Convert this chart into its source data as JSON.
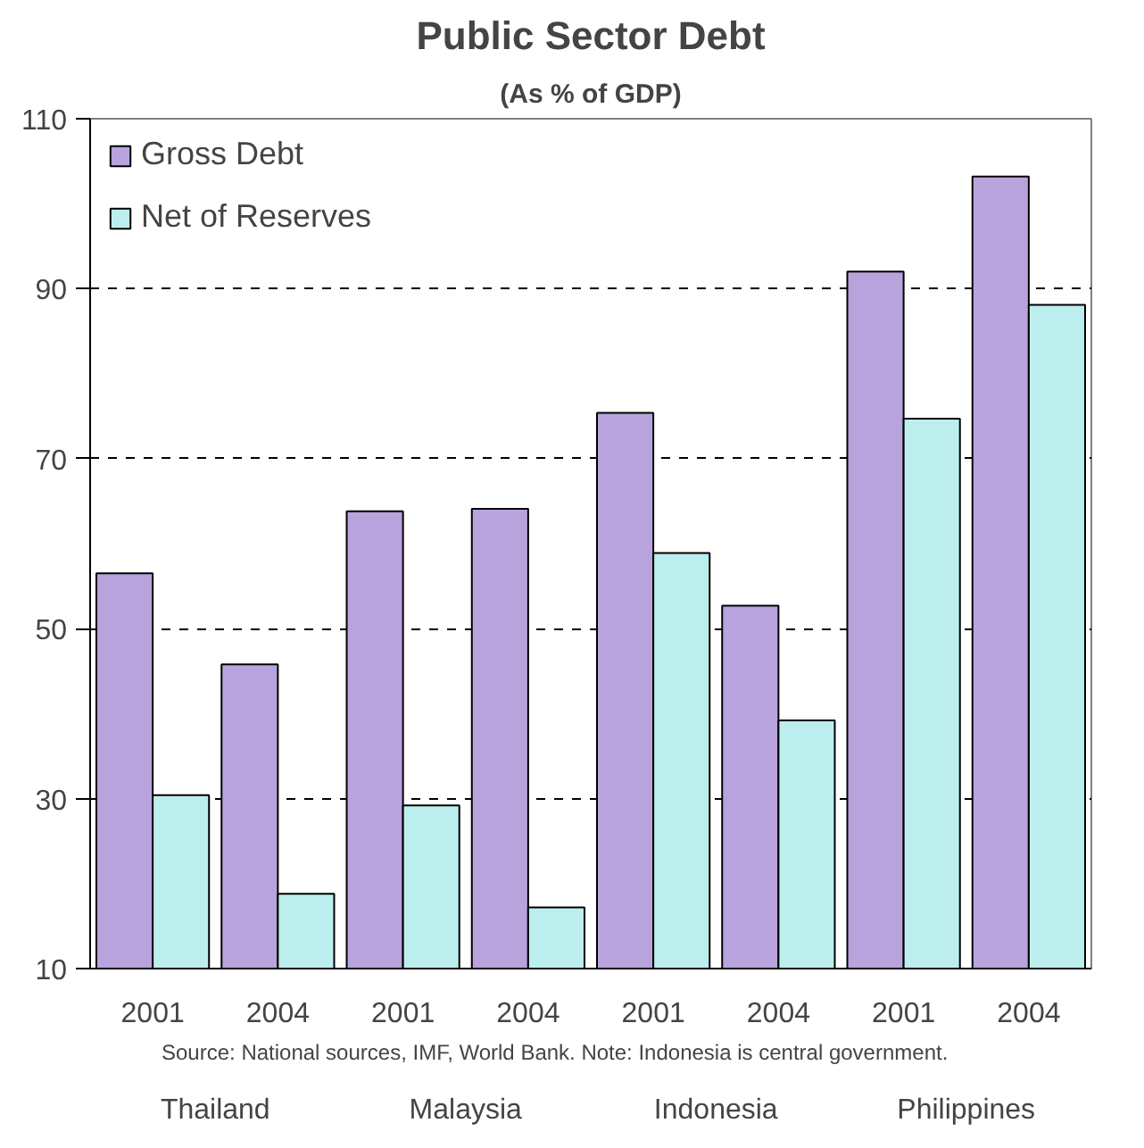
{
  "chart_data": {
    "type": "bar",
    "title": "Public Sector Debt",
    "subtitle": "(As % of GDP)",
    "categories": [
      "2001",
      "2004",
      "2001",
      "2004",
      "2001",
      "2004",
      "2001",
      "2004"
    ],
    "series": [
      {
        "name": "Gross Debt",
        "color": "#b9a3dc",
        "values": [
          56.5,
          45.8,
          63.8,
          64.1,
          75.4,
          52.7,
          92.0,
          103.2
        ]
      },
      {
        "name": "Net of Reserves",
        "color": "#bdeeee",
        "values": [
          30.4,
          18.8,
          29.2,
          17.2,
          58.9,
          39.2,
          74.7,
          88.1
        ]
      }
    ],
    "ylim": [
      10,
      110
    ],
    "yticks": [
      10,
      30,
      50,
      70,
      90,
      110
    ],
    "grid": "y",
    "legend": "top left",
    "annotations": [
      "Thailand",
      "Malaysia",
      "Indonesia",
      "Philippines",
      "Source:  National sources, IMF, World Bank.  Note: Indonesia is central government."
    ]
  }
}
